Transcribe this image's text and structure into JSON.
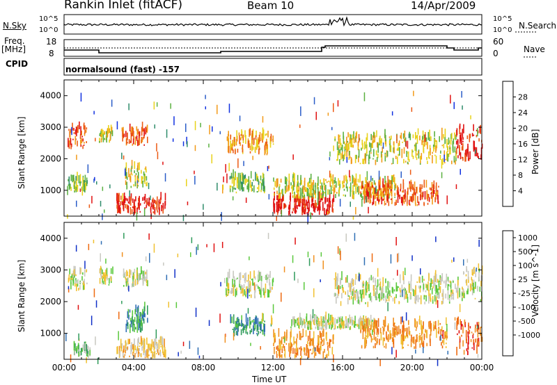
{
  "header": {
    "station": "Rankin Inlet (fitACF)",
    "beam": "Beam 10",
    "date": "14/Apr/2009"
  },
  "noise_panel": {
    "left_label": "N.Sky",
    "right_label": "N.Search",
    "ticks_left": [
      "10^5",
      "10^0"
    ],
    "ticks_right": [
      "10^5",
      "10^0"
    ]
  },
  "freq_panel": {
    "left_label_1": "Freq.",
    "left_label_2": "[MHz]",
    "right_label": "Nave",
    "ticks_left": [
      "18",
      "8"
    ],
    "ticks_right": [
      "60",
      "0"
    ]
  },
  "cpid_panel": {
    "left_label": "CPID",
    "program": "normalsound (fast) -157"
  },
  "chart_data": [
    {
      "type": "heatmap",
      "panel": "power",
      "ylabel": "Slant Range [km]",
      "xlabel": "",
      "yticks": [
        "1000",
        "2000",
        "3000",
        "4000"
      ],
      "ylim": [
        180,
        4500
      ],
      "colorbar_label": "Power [dB]",
      "colorbar_ticks": [
        "4",
        "8",
        "12",
        "16",
        "20",
        "24",
        "28"
      ],
      "colorbar_colors": [
        "#1030e0",
        "#2a5cc8",
        "#2e8c6a",
        "#5ab040",
        "#e8d21a",
        "#f29a18",
        "#ec5a14",
        "#e01010"
      ],
      "regions": [
        {
          "t0": 0.2,
          "t1": 1.3,
          "r0": 2300,
          "r1": 2950,
          "level": 6
        },
        {
          "t0": 0.2,
          "t1": 1.3,
          "r0": 900,
          "r1": 1300,
          "level": 3
        },
        {
          "t0": 2.0,
          "t1": 2.8,
          "r0": 2500,
          "r1": 2900,
          "level": 4
        },
        {
          "t0": 3.3,
          "t1": 4.8,
          "r0": 2400,
          "r1": 2900,
          "level": 6
        },
        {
          "t0": 3.5,
          "t1": 4.8,
          "r0": 1000,
          "r1": 1700,
          "level": 4
        },
        {
          "t0": 3.0,
          "t1": 5.8,
          "r0": 200,
          "r1": 700,
          "level": 7
        },
        {
          "t0": 9.3,
          "t1": 12.0,
          "r0": 2100,
          "r1": 2750,
          "level": 5
        },
        {
          "t0": 9.5,
          "t1": 11.5,
          "r0": 900,
          "r1": 1400,
          "level": 3
        },
        {
          "t0": 12.0,
          "t1": 15.5,
          "r0": 200,
          "r1": 700,
          "level": 7
        },
        {
          "t0": 12.0,
          "t1": 19.0,
          "r0": 700,
          "r1": 1300,
          "level": 4
        },
        {
          "t0": 15.5,
          "t1": 22.5,
          "r0": 1800,
          "r1": 2700,
          "level": 4
        },
        {
          "t0": 17.0,
          "t1": 21.5,
          "r0": 500,
          "r1": 1100,
          "level": 6
        },
        {
          "t0": 22.5,
          "t1": 24.0,
          "r0": 1900,
          "r1": 2950,
          "level": 7
        }
      ]
    },
    {
      "type": "heatmap",
      "panel": "velocity",
      "ylabel": "Slant Range [km]",
      "xlabel": "Time UT",
      "xticks": [
        "00:00",
        "04:00",
        "08:00",
        "12:00",
        "16:00",
        "20:00",
        "00:00"
      ],
      "yticks": [
        "1000",
        "2000",
        "3000",
        "4000"
      ],
      "ylim": [
        180,
        4500
      ],
      "colorbar_label": "Velocity [m s^-1]",
      "colorbar_ticks": [
        "1000",
        "500",
        "100",
        "25",
        "-25",
        "-100",
        "-500",
        "-1000"
      ],
      "colorbar_colors": [
        "#1030c8",
        "#2e6eb4",
        "#2e9a5a",
        "#5ac83c",
        "#c8c8c0",
        "#f0c030",
        "#f09020",
        "#ee6a10",
        "#e01010"
      ],
      "regions": [
        {
          "t0": 0.2,
          "t1": 1.3,
          "r0": 2300,
          "r1": 2950,
          "level": 4
        },
        {
          "t0": 2.0,
          "t1": 2.8,
          "r0": 2500,
          "r1": 2900,
          "level": 4
        },
        {
          "t0": 3.3,
          "t1": 4.8,
          "r0": 2400,
          "r1": 2900,
          "level": 4
        },
        {
          "t0": 3.5,
          "t1": 4.8,
          "r0": 1000,
          "r1": 1700,
          "level": 2
        },
        {
          "t0": 0.5,
          "t1": 1.5,
          "r0": 200,
          "r1": 500,
          "level": 3
        },
        {
          "t0": 3.0,
          "t1": 5.8,
          "r0": 200,
          "r1": 700,
          "level": 5
        },
        {
          "t0": 9.3,
          "t1": 12.0,
          "r0": 2100,
          "r1": 2750,
          "level": 4
        },
        {
          "t0": 9.5,
          "t1": 11.5,
          "r0": 900,
          "r1": 1400,
          "level": 2
        },
        {
          "t0": 12.0,
          "t1": 15.5,
          "r0": 200,
          "r1": 900,
          "level": 6
        },
        {
          "t0": 13.0,
          "t1": 18.0,
          "r0": 1100,
          "r1": 1400,
          "level": 4
        },
        {
          "t0": 15.5,
          "t1": 22.5,
          "r0": 1900,
          "r1": 2700,
          "level": 4
        },
        {
          "t0": 17.0,
          "t1": 22.0,
          "r0": 500,
          "r1": 1300,
          "level": 6
        },
        {
          "t0": 22.5,
          "t1": 24.0,
          "r0": 2000,
          "r1": 2950,
          "level": 4
        },
        {
          "t0": 22.5,
          "t1": 24.0,
          "r0": 300,
          "r1": 1300,
          "level": 7
        }
      ]
    }
  ]
}
